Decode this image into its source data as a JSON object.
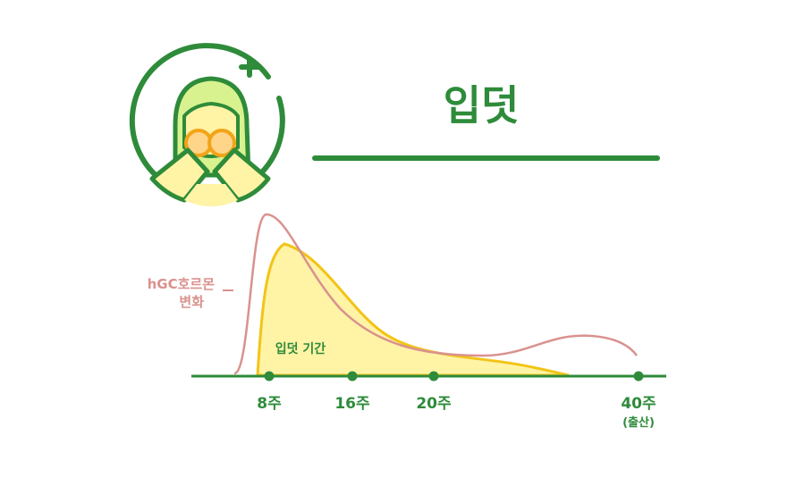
{
  "header": {
    "title": "입덧"
  },
  "legend": {
    "hcg_line1": "hGC호르몬",
    "hcg_line2": "변화",
    "period_label": "입덧 기간"
  },
  "icons": {
    "illustration": "nauseous-woman-icon",
    "plus": "plus-icon"
  },
  "colors": {
    "primary_green": "#2e8b3a",
    "hormone_curve": "#d9928e",
    "fill_yellow": "#fff3a6",
    "curve_yellow": "#f2c417",
    "illustration_light": "#d8f28f"
  },
  "chart_data": {
    "type": "area",
    "x_ticks": [
      {
        "week": 8,
        "label": "8주",
        "sub": ""
      },
      {
        "week": 16,
        "label": "16주",
        "sub": ""
      },
      {
        "week": 20,
        "label": "20주",
        "sub": ""
      },
      {
        "week": 40,
        "label": "40주",
        "sub": "(출산)"
      }
    ],
    "series": [
      {
        "name": "hGC호르몬 변화",
        "kind": "line"
      },
      {
        "name": "입덧 기간",
        "kind": "area"
      }
    ]
  }
}
